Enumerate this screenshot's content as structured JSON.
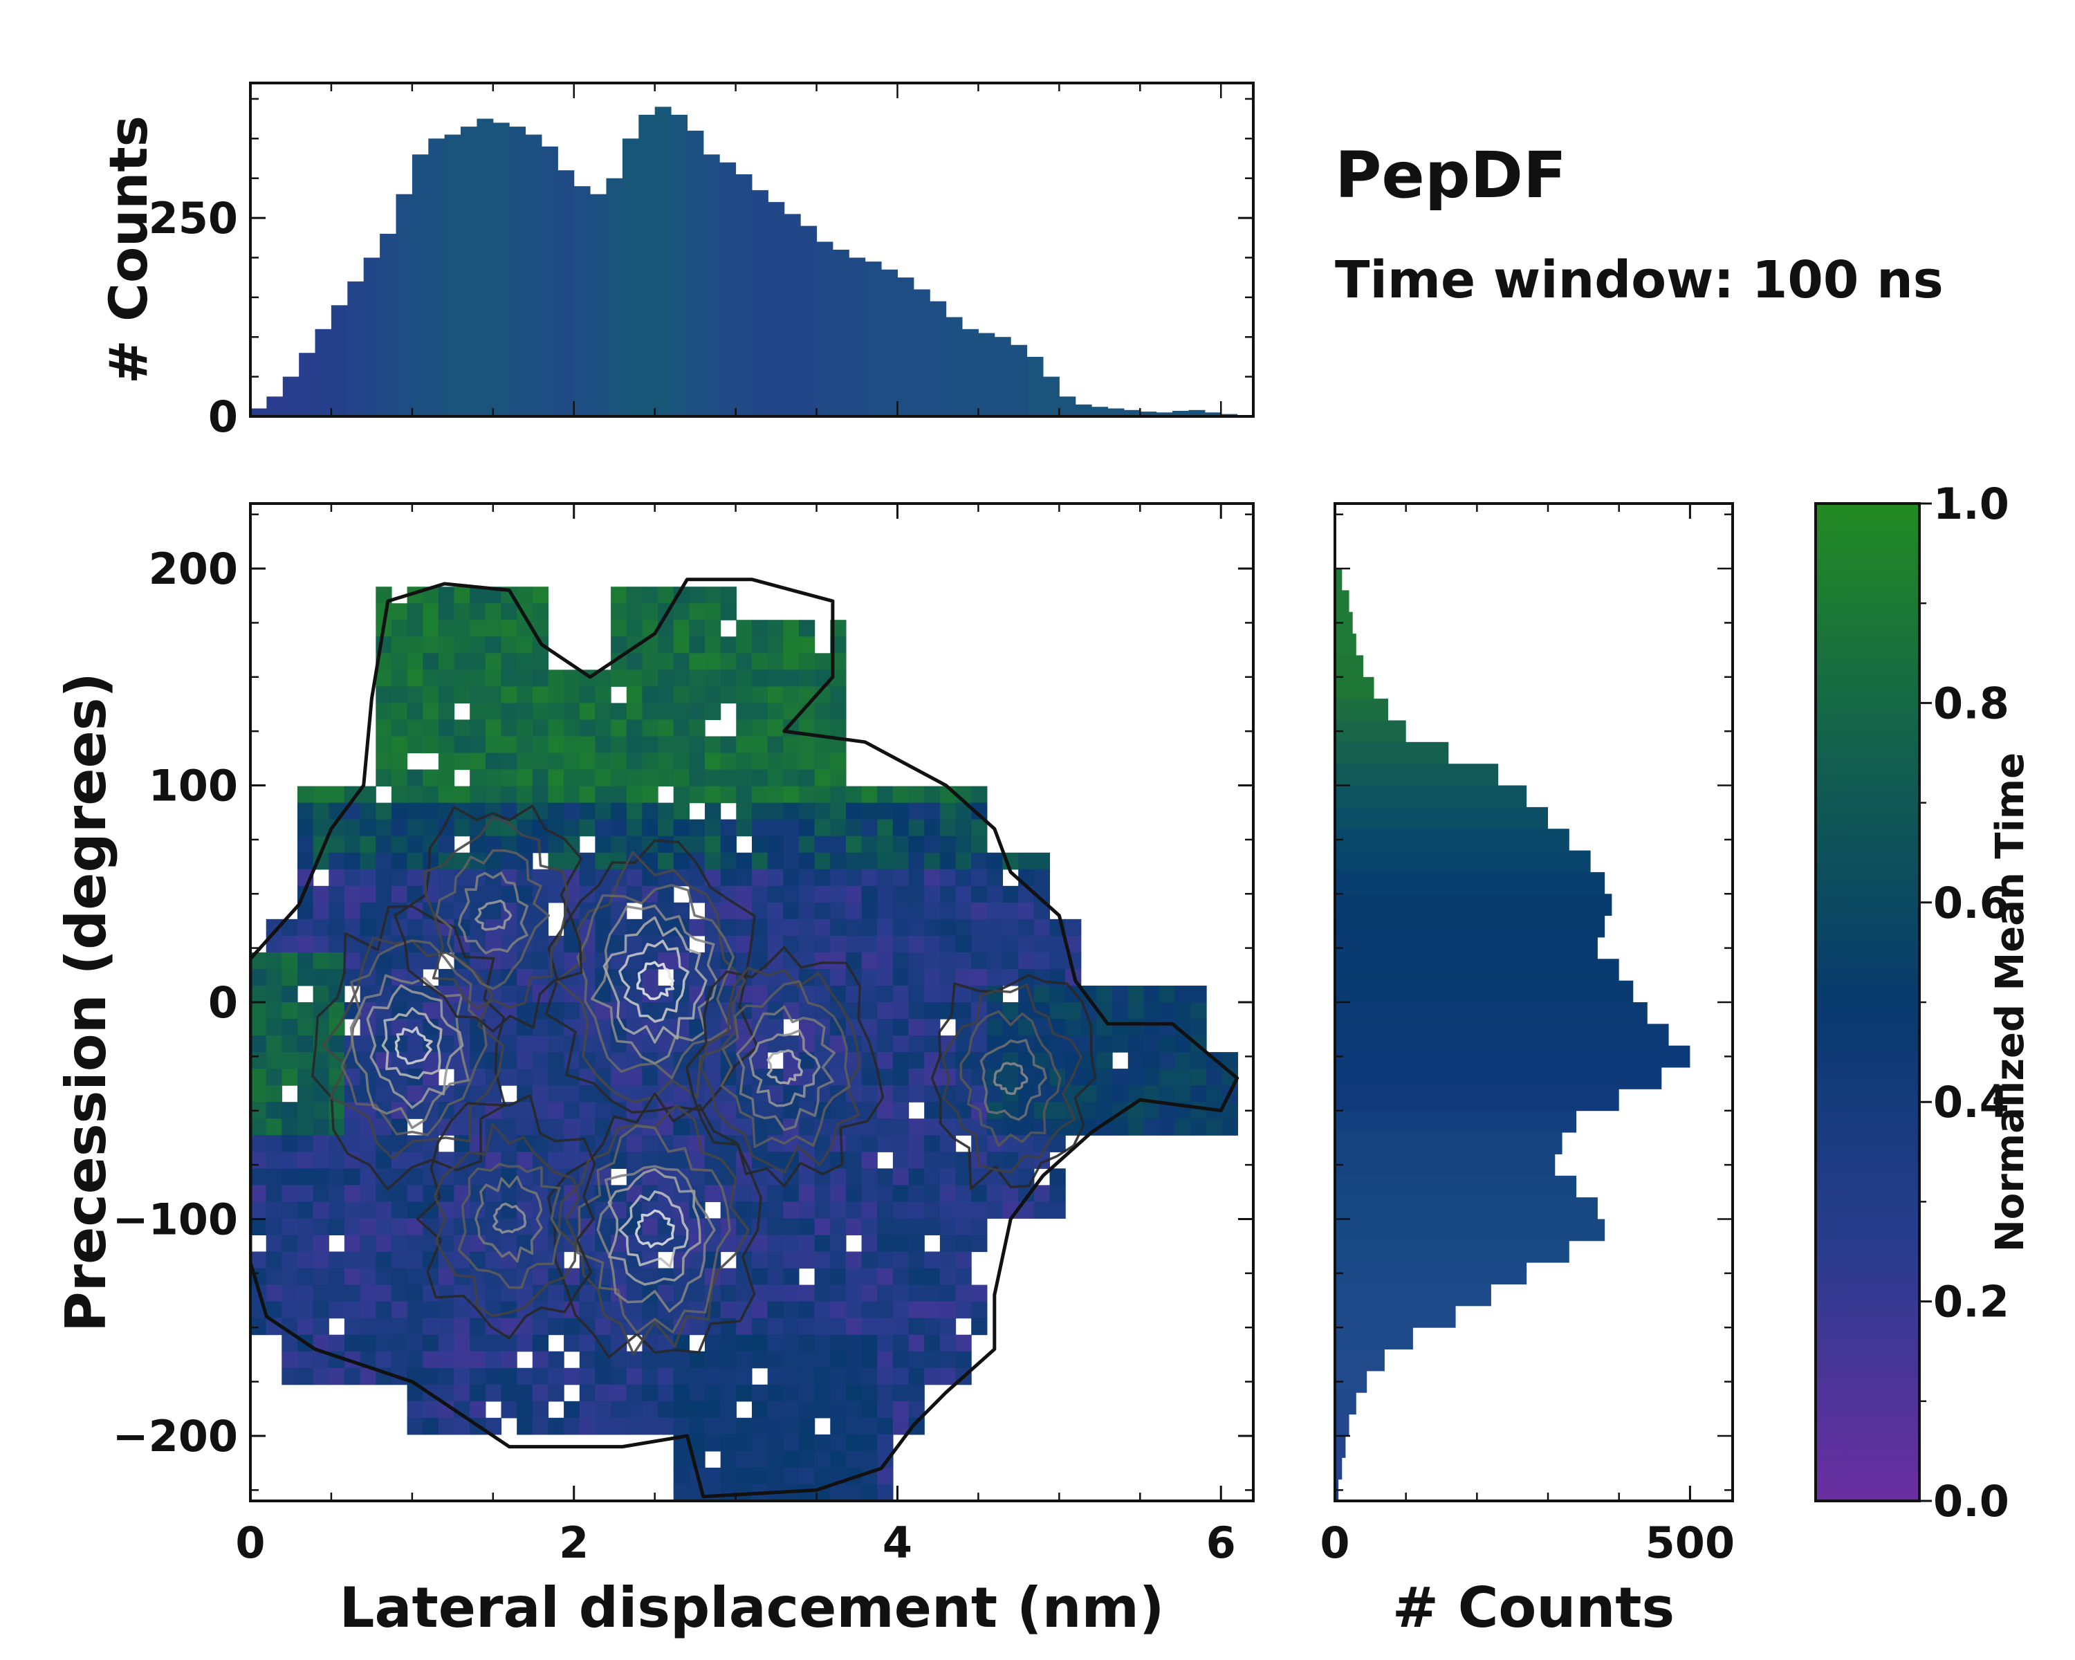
{
  "title": "PepDF",
  "subtitle": "Time window: 100 ns",
  "colors": {
    "colormap_low": "#6a2ea0",
    "colormap_mid_low": "#2a3c8e",
    "colormap_mid": "#083a6e",
    "colormap_mid_high": "#12604e",
    "colormap_high": "#238b23",
    "contour_dark": "#111111",
    "contour_light": "#e0e0e0",
    "frame": "#111111"
  },
  "chart_data": [
    {
      "id": "joint",
      "type": "heatmap",
      "xlabel": "Lateral displacement (nm)",
      "ylabel": "Precession (degrees)",
      "xlim": [
        0,
        6.2
      ],
      "ylim": [
        -230,
        230
      ],
      "xticks": [
        0,
        2,
        4,
        6
      ],
      "xtick_labels": [
        "0",
        "2",
        "4",
        "6"
      ],
      "yticks": [
        200,
        100,
        0,
        -100,
        -200
      ],
      "ytick_labels": [
        "200",
        "100",
        "0",
        "−100",
        "−200"
      ],
      "density_peaks": [
        {
          "x": 2.5,
          "y": 10,
          "weight": 1.0
        },
        {
          "x": 1.0,
          "y": -20,
          "weight": 0.9
        },
        {
          "x": 2.5,
          "y": -105,
          "weight": 0.95
        },
        {
          "x": 3.3,
          "y": -30,
          "weight": 0.7
        },
        {
          "x": 1.5,
          "y": 40,
          "weight": 0.6
        },
        {
          "x": 4.7,
          "y": -35,
          "weight": 0.5
        },
        {
          "x": 1.6,
          "y": -100,
          "weight": 0.55
        }
      ],
      "color_by": "Normalized Mean Time",
      "colorbar_label": "Normalized Mean Time"
    },
    {
      "id": "top_histogram",
      "type": "bar",
      "ylabel": "# Counts",
      "xlim": [
        0,
        6.2
      ],
      "ylim": [
        0,
        420
      ],
      "yticks": [
        0,
        250
      ],
      "ytick_labels": [
        "0",
        "250"
      ],
      "bin_centers": [
        0.05,
        0.15,
        0.25,
        0.35,
        0.45,
        0.55,
        0.65,
        0.75,
        0.85,
        0.95,
        1.05,
        1.15,
        1.25,
        1.35,
        1.45,
        1.55,
        1.65,
        1.75,
        1.85,
        1.95,
        2.05,
        2.15,
        2.25,
        2.35,
        2.45,
        2.55,
        2.65,
        2.75,
        2.85,
        2.95,
        3.05,
        3.15,
        3.25,
        3.35,
        3.45,
        3.55,
        3.65,
        3.75,
        3.85,
        3.95,
        4.05,
        4.15,
        4.25,
        4.35,
        4.45,
        4.55,
        4.65,
        4.75,
        4.85,
        4.95,
        5.05,
        5.15,
        5.25,
        5.35,
        5.45,
        5.55,
        5.65,
        5.75,
        5.85,
        5.95,
        6.05
      ],
      "values": [
        10,
        25,
        50,
        80,
        110,
        140,
        170,
        200,
        230,
        280,
        330,
        350,
        355,
        365,
        375,
        370,
        365,
        355,
        340,
        310,
        290,
        280,
        300,
        350,
        380,
        390,
        380,
        360,
        330,
        320,
        305,
        285,
        270,
        255,
        240,
        220,
        210,
        200,
        195,
        185,
        175,
        160,
        145,
        125,
        110,
        105,
        100,
        90,
        75,
        50,
        25,
        15,
        12,
        10,
        8,
        6,
        5,
        7,
        8,
        5,
        3
      ],
      "colors": [
        "#2a3c8e",
        "#2a3c8e",
        "#283e8e",
        "#283e8e",
        "#26418c",
        "#26418c",
        "#24448a",
        "#224788",
        "#204a86",
        "#1e4d84",
        "#1c5080",
        "#1c5080",
        "#1a537c",
        "#1a537c",
        "#1a537c",
        "#1a537c",
        "#1c5080",
        "#1c5080",
        "#1e4d84",
        "#204a86",
        "#1e4d84",
        "#1c5080",
        "#1a537c",
        "#185678",
        "#185678",
        "#185678",
        "#1a537c",
        "#1c5080",
        "#1e4d84",
        "#204a86",
        "#204a86",
        "#224788",
        "#224788",
        "#224788",
        "#224788",
        "#204a86",
        "#204a86",
        "#204a86",
        "#1e4d84",
        "#1e4d84",
        "#1e4d84",
        "#1e4d84",
        "#1e4d84",
        "#1c5080",
        "#1c5080",
        "#1c5080",
        "#1c5080",
        "#1c5080",
        "#1a537c",
        "#1a537c",
        "#1a537c",
        "#1a537c",
        "#1a537c",
        "#1a537c",
        "#1a537c",
        "#1a537c",
        "#1a537c",
        "#1a537c",
        "#1a537c",
        "#1a537c",
        "#1a537c"
      ]
    },
    {
      "id": "right_histogram",
      "type": "bar",
      "orientation": "horizontal",
      "xlabel": "# Counts",
      "xlim": [
        0,
        560
      ],
      "ylim": [
        -230,
        230
      ],
      "xticks": [
        0,
        500
      ],
      "xtick_labels": [
        "0",
        "500"
      ],
      "bin_centers": [
        195,
        185,
        175,
        165,
        155,
        145,
        135,
        125,
        115,
        105,
        95,
        85,
        75,
        65,
        55,
        45,
        35,
        25,
        15,
        5,
        -5,
        -15,
        -25,
        -35,
        -45,
        -55,
        -65,
        -75,
        -85,
        -95,
        -105,
        -115,
        -125,
        -135,
        -145,
        -155,
        -165,
        -175,
        -185,
        -195,
        -205,
        -215,
        -225
      ],
      "values": [
        10,
        20,
        25,
        30,
        40,
        55,
        75,
        100,
        160,
        230,
        270,
        300,
        330,
        360,
        380,
        390,
        380,
        370,
        400,
        420,
        440,
        470,
        500,
        460,
        400,
        340,
        320,
        310,
        340,
        370,
        380,
        330,
        270,
        220,
        170,
        110,
        70,
        45,
        30,
        20,
        15,
        10,
        5
      ],
      "colors": [
        "#1e7a36",
        "#1e7a36",
        "#1e7a36",
        "#1e7a36",
        "#1e7636",
        "#1e7636",
        "#1c6e40",
        "#1a6648",
        "#166050",
        "#125a58",
        "#0e5460",
        "#0c4e66",
        "#0a486a",
        "#08446c",
        "#083f6e",
        "#083c6e",
        "#083a6e",
        "#093a70",
        "#093a70",
        "#0a3a72",
        "#0b3a74",
        "#0c3a76",
        "#0d3a78",
        "#0e3a7a",
        "#103a7c",
        "#12407e",
        "#14437f",
        "#164480",
        "#174782",
        "#184882",
        "#194984",
        "#1a4a86",
        "#1c4a88",
        "#1d4a88",
        "#1e4a8a",
        "#1f4a8a",
        "#204a8a",
        "#214a8c",
        "#22488c",
        "#23468c",
        "#24448c",
        "#25428c",
        "#26408c"
      ]
    },
    {
      "id": "colorbar",
      "type": "colorbar",
      "label": "Normalized Mean Time",
      "range": [
        0.0,
        1.0
      ],
      "ticks": [
        0.0,
        0.2,
        0.4,
        0.6,
        0.8,
        1.0
      ],
      "tick_labels": [
        "0.0",
        "0.2",
        "0.4",
        "0.6",
        "0.8",
        "1.0"
      ],
      "stops": [
        "#6a2ea0",
        "#2a3c8e",
        "#083a6e",
        "#12604e",
        "#238b23"
      ]
    }
  ]
}
